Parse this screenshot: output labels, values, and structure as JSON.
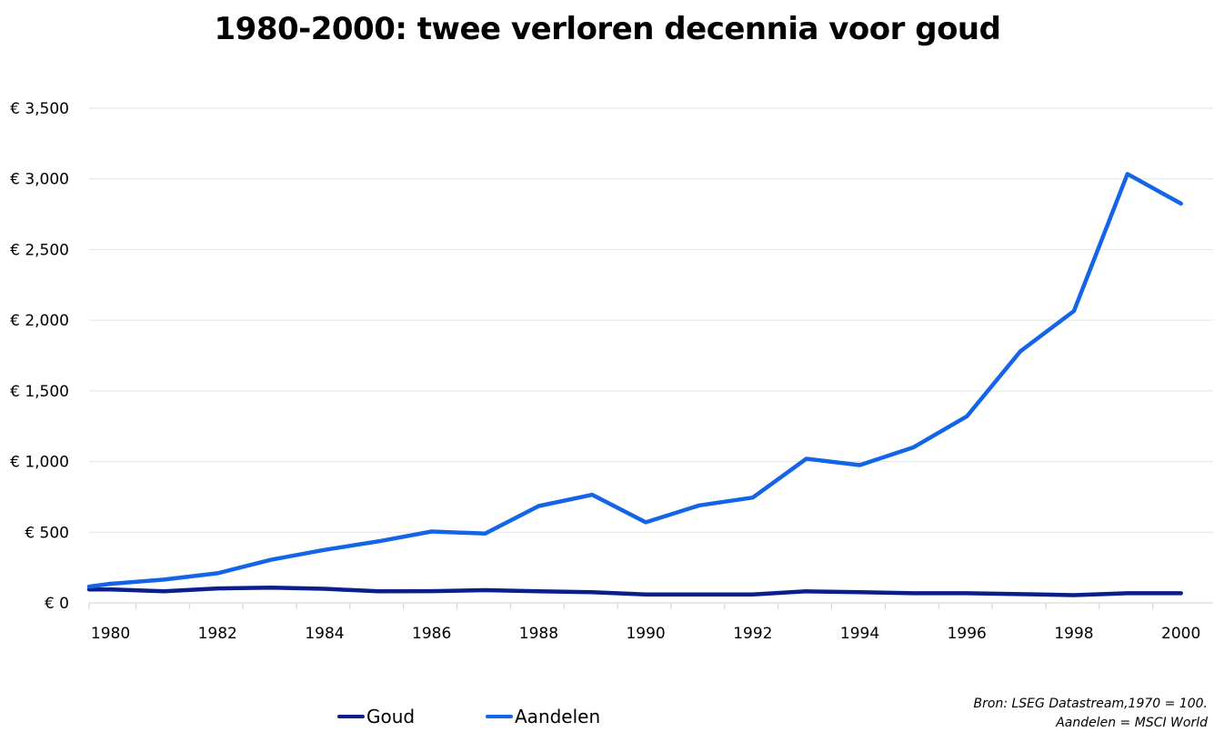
{
  "title": "1980-2000: twee verloren decennia voor goud",
  "chart_data": {
    "type": "line",
    "title": "1980-2000: twee verloren decennia voor goud",
    "xlabel": "",
    "ylabel": "",
    "xlim": [
      1979.6,
      2000.6
    ],
    "ylim": [
      0,
      3500
    ],
    "x_ticks": [
      1980,
      1982,
      1984,
      1986,
      1988,
      1990,
      1992,
      1994,
      1996,
      1998,
      2000
    ],
    "y_ticks": [
      0,
      500,
      1000,
      1500,
      2000,
      2500,
      3000,
      3500
    ],
    "y_tick_labels": [
      "€ 0",
      "€ 500",
      "€ 1,000",
      "€ 1,500",
      "€ 2,000",
      "€ 2,500",
      "€ 3,000",
      "€ 3,500"
    ],
    "grid": true,
    "legend_position": "bottom",
    "x": [
      1979.6,
      1980,
      1981,
      1982,
      1983,
      1984,
      1985,
      1986,
      1987,
      1988,
      1989,
      1990,
      1991,
      1992,
      1993,
      1994,
      1995,
      1996,
      1997,
      1998,
      1999,
      2000
    ],
    "series": [
      {
        "name": "Goud",
        "color": "#0a1e8c",
        "values": [
          95,
          95,
          82,
          102,
          108,
          100,
          82,
          83,
          90,
          82,
          75,
          60,
          60,
          60,
          82,
          75,
          68,
          68,
          62,
          55,
          68,
          68
        ]
      },
      {
        "name": "Aandelen",
        "color": "#1464e8",
        "values": [
          115,
          135,
          165,
          210,
          305,
          375,
          435,
          505,
          490,
          685,
          765,
          570,
          690,
          745,
          1020,
          975,
          1100,
          1320,
          1780,
          2065,
          3035,
          2825
        ]
      }
    ]
  },
  "legend": {
    "goud_label": "Goud",
    "aandelen_label": "Aandelen"
  },
  "source": {
    "line1": "Bron: LSEG Datastream,1970 = 100.",
    "line2": "Aandelen = MSCI World"
  }
}
